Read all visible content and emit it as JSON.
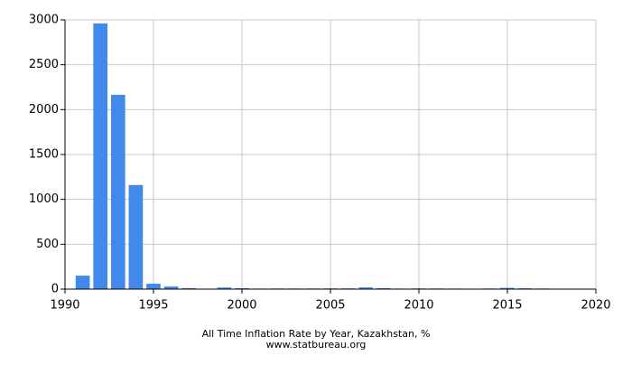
{
  "chart_data": {
    "type": "bar",
    "title": "All Time Inflation Rate by Year, Kazakhstan, %",
    "source": "www.statbureau.org",
    "x": [
      1991,
      1992,
      1993,
      1994,
      1995,
      1996,
      1997,
      1998,
      1999,
      2000,
      2001,
      2002,
      2003,
      2004,
      2005,
      2006,
      2007,
      2008,
      2009,
      2010,
      2011,
      2012,
      2013,
      2014,
      2015,
      2016,
      2017,
      2018,
      2019
    ],
    "values": [
      150,
      2960,
      2165,
      1160,
      60,
      29,
      11,
      2,
      18,
      10,
      6,
      7,
      7,
      7,
      8,
      8,
      19,
      10,
      6,
      8,
      7,
      6,
      5,
      7,
      14,
      9,
      7,
      5,
      5
    ],
    "color": "#4189ea",
    "xlim": [
      1990,
      2020
    ],
    "xticks": [
      1990,
      1995,
      2000,
      2005,
      2010,
      2015,
      2020
    ],
    "ylim": [
      0,
      3000
    ],
    "yticks": [
      0,
      500,
      1000,
      1500,
      2000,
      2500,
      3000
    ],
    "grid": true
  }
}
